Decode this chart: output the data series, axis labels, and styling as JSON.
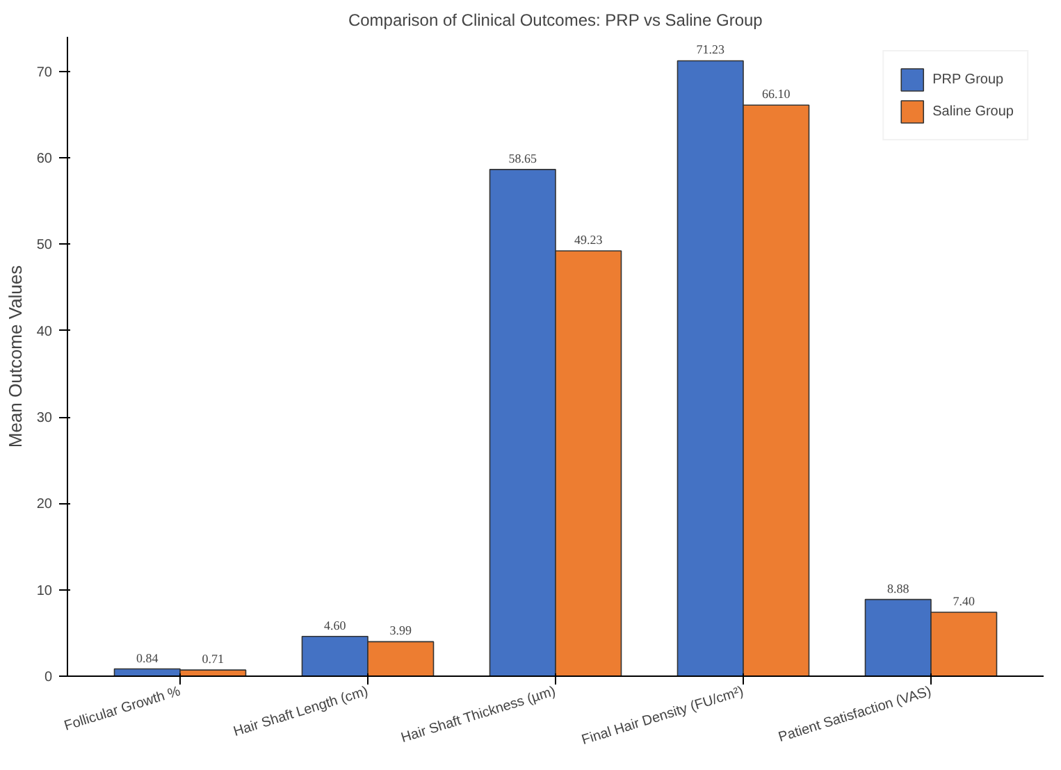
{
  "chart_data": {
    "type": "bar",
    "title": "Comparison of Clinical Outcomes: PRP vs Saline Group",
    "ylabel": "Mean Outcome Values",
    "categories": [
      "Follicular Growth %",
      "Hair Shaft Length (cm)",
      "Hair Shaft Thickness (µm)",
      "Final Hair Density (FU/cm²)",
      "Patient Satisfaction (VAS)"
    ],
    "series": [
      {
        "name": "PRP Group",
        "color": "#4472c4",
        "values": [
          0.84,
          4.6,
          58.65,
          71.23,
          8.88
        ],
        "value_labels": [
          "0.84",
          "4.60",
          "58.65",
          "71.23",
          "8.88"
        ]
      },
      {
        "name": "Saline Group",
        "color": "#ed7d31",
        "values": [
          0.71,
          3.99,
          49.23,
          66.1,
          7.4
        ],
        "value_labels": [
          "0.71",
          "3.99",
          "49.23",
          "66.10",
          "7.40"
        ]
      }
    ],
    "ylim": [
      0,
      74
    ],
    "yticks": [
      0,
      10,
      20,
      30,
      40,
      50,
      60,
      70
    ],
    "grid": false,
    "legend": "top right"
  }
}
